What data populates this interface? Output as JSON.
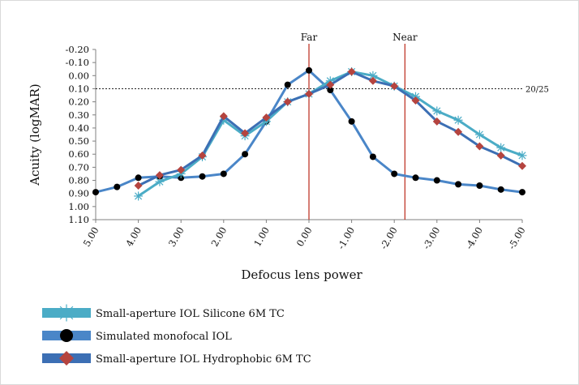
{
  "chart_data": {
    "type": "line",
    "xlabel": "Defocus lens power",
    "ylabel": "Acuity (logMAR)",
    "x_tick_labels": [
      "5.00",
      "4.00",
      "3.00",
      "2.00",
      "1.00",
      "0.00",
      "-1.00",
      "-2.00",
      "-3.00",
      "-4.00",
      "-5.00"
    ],
    "x_ticks": [
      5.0,
      4.0,
      3.0,
      2.0,
      1.0,
      0.0,
      -1.0,
      -2.0,
      -3.0,
      -4.0,
      -5.0
    ],
    "xlim": [
      5.0,
      -5.0
    ],
    "y_tick_labels": [
      "-0.20",
      "-0.10",
      "0.00",
      "0.10",
      "0.20",
      "0.30",
      "0.40",
      "0.50",
      "0.60",
      "0.70",
      "0.80",
      "0.90",
      "1.00",
      "1.10"
    ],
    "y_ticks": [
      -0.2,
      -0.1,
      0.0,
      0.1,
      0.2,
      0.3,
      0.4,
      0.5,
      0.6,
      0.7,
      0.8,
      0.9,
      1.0,
      1.1
    ],
    "ylim": [
      -0.2,
      1.1
    ],
    "y_inverted": true,
    "vertical_lines": [
      {
        "label": "Far",
        "x": 0.0,
        "color": "#c0392b"
      },
      {
        "label": "Near",
        "x": -2.25,
        "color": "#c0392b"
      }
    ],
    "reference_line": {
      "label": "20/25",
      "y": 0.1,
      "style": "dotted"
    },
    "series": [
      {
        "name": "Simulated monofocal IOL",
        "color": "#4a86c8",
        "marker": "circle",
        "marker_color": "#000000",
        "x": [
          5.0,
          4.5,
          4.0,
          3.5,
          3.0,
          2.5,
          2.0,
          1.5,
          1.0,
          0.5,
          0.0,
          -0.5,
          -1.0,
          -1.5,
          -2.0,
          -2.5,
          -3.0,
          -3.5,
          -4.0,
          -4.5,
          -5.0
        ],
        "y": [
          0.89,
          0.85,
          0.78,
          0.77,
          0.78,
          0.77,
          0.75,
          0.6,
          0.35,
          0.07,
          -0.04,
          0.11,
          0.35,
          0.62,
          0.75,
          0.78,
          0.8,
          0.83,
          0.84,
          0.87,
          0.89
        ]
      },
      {
        "name": "Small-aperture IOL Silicone 6M TC",
        "color": "#4bacc6",
        "marker": "star",
        "marker_color": "#4bacc6",
        "x": [
          4.0,
          3.5,
          3.0,
          2.5,
          2.0,
          1.5,
          1.0,
          0.5,
          0.0,
          -0.5,
          -1.0,
          -1.5,
          -2.0,
          -2.5,
          -3.0,
          -3.5,
          -4.0,
          -4.5,
          -5.0
        ],
        "y": [
          0.92,
          0.81,
          0.75,
          0.62,
          0.34,
          0.46,
          0.35,
          0.2,
          0.14,
          0.04,
          -0.03,
          0.0,
          0.08,
          0.16,
          0.27,
          0.34,
          0.45,
          0.55,
          0.61
        ]
      },
      {
        "name": "Small-aperture IOL Hydrophobic 6M TC",
        "color": "#3c6fb4",
        "marker": "diamond",
        "marker_color": "#b5443f",
        "x": [
          4.0,
          3.5,
          3.0,
          2.5,
          2.0,
          1.5,
          1.0,
          0.5,
          0.0,
          -0.5,
          -1.0,
          -1.5,
          -2.0,
          -2.5,
          -3.0,
          -3.5,
          -4.0,
          -4.5,
          -5.0
        ],
        "y": [
          0.84,
          0.76,
          0.72,
          0.61,
          0.31,
          0.44,
          0.32,
          0.2,
          0.14,
          0.07,
          -0.03,
          0.04,
          0.08,
          0.19,
          0.35,
          0.43,
          0.54,
          0.61,
          0.69
        ]
      }
    ],
    "legend_placement": "bottom-left"
  }
}
